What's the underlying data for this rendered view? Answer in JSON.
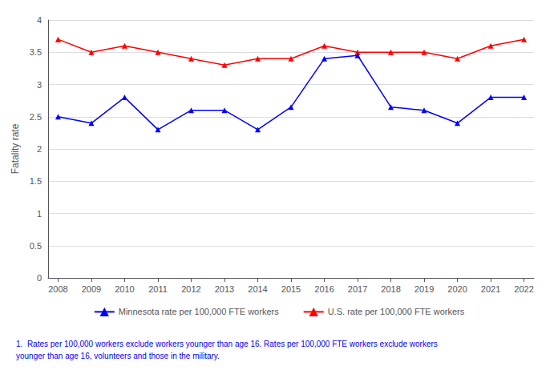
{
  "chart_data": {
    "type": "line",
    "x": [
      2008,
      2009,
      2010,
      2011,
      2012,
      2013,
      2014,
      2015,
      2016,
      2017,
      2018,
      2019,
      2020,
      2021,
      2022
    ],
    "series": [
      {
        "name": "U.S. rate per 100,000 FTE workers",
        "color": "#FF0000",
        "marker": "triangle",
        "values": [
          3.7,
          3.5,
          3.6,
          3.5,
          3.4,
          3.3,
          3.4,
          3.4,
          3.6,
          3.5,
          3.5,
          3.5,
          3.4,
          3.6,
          3.7
        ]
      },
      {
        "name": "Minnesota rate per 100,000 FTE workers",
        "color": "#0000FF",
        "marker": "triangle",
        "values": [
          2.5,
          2.4,
          2.8,
          2.3,
          2.6,
          2.6,
          2.3,
          2.65,
          3.4,
          3.45,
          2.65,
          2.6,
          2.4,
          2.8,
          2.8
        ]
      }
    ],
    "ylabel": "Fatality rate",
    "xlim": [
      2007.7,
      2022.3
    ],
    "xticks": [
      2008,
      2009,
      2010,
      2011,
      2012,
      2013,
      2014,
      2015,
      2016,
      2017,
      2018,
      2019,
      2020,
      2021,
      2022
    ],
    "ylim": [
      0,
      4
    ],
    "yticks": [
      0,
      0.5,
      1,
      1.5,
      2,
      2.5,
      3,
      3.5,
      4
    ],
    "grid": true,
    "legend": "bottom",
    "annotations": [
      {
        "text": "1.  Rates per 100,000 workers exclude workers younger than age 16. Rates per 100,000 FTE workers exclude workers",
        "color": "#0000FF"
      },
      {
        "text": "younger than age 16, volunteers and those in the military.",
        "color": "#0000FF"
      }
    ]
  }
}
